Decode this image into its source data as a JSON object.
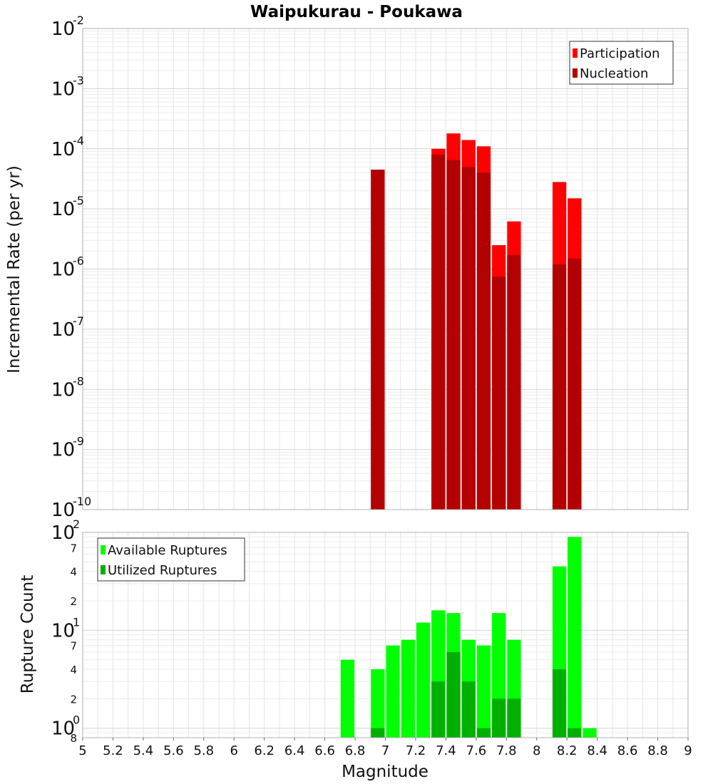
{
  "chart_data": [
    {
      "type": "bar",
      "title": "Waipukurau - Poukawa",
      "xlabel": "",
      "ylabel": "Incremental Rate (per yr)",
      "xlim": [
        5,
        9
      ],
      "ylim": [
        1e-10,
        0.01
      ],
      "yscale": "log",
      "grid": true,
      "legend_position": "top-right",
      "bar_width": 0.1,
      "x_ticks": [
        "5",
        "5.2",
        "5.4",
        "5.6",
        "5.8",
        "6",
        "6.2",
        "6.4",
        "6.6",
        "6.8",
        "7",
        "7.2",
        "7.4",
        "7.6",
        "7.8",
        "8",
        "8.2",
        "8.4",
        "8.6",
        "8.8",
        "9"
      ],
      "y_tick_bases": [
        "10",
        "10",
        "10",
        "10",
        "10",
        "10",
        "10",
        "10",
        "10"
      ],
      "y_tick_exponents": [
        "-10",
        "-9",
        "-8",
        "-7",
        "-6",
        "-5",
        "-4",
        "-3",
        "-2"
      ],
      "series": [
        {
          "name": "Participation",
          "color": "#ff0000",
          "x": [
            6.95,
            7.35,
            7.45,
            7.55,
            7.65,
            7.75,
            7.85,
            8.15,
            8.25
          ],
          "values": [
            4.5e-05,
            0.0001,
            0.00018,
            0.00014,
            0.00011,
            2.5e-06,
            6.2e-06,
            2.8e-05,
            1.5e-05
          ]
        },
        {
          "name": "Nucleation",
          "color": "#b30000",
          "x": [
            6.95,
            7.35,
            7.45,
            7.55,
            7.65,
            7.75,
            7.85,
            8.15,
            8.25
          ],
          "values": [
            4.5e-05,
            8e-05,
            6.5e-05,
            5e-05,
            4e-05,
            7.5e-07,
            1.7e-06,
            1.2e-06,
            1.5e-06
          ]
        }
      ]
    },
    {
      "type": "bar",
      "title": "",
      "xlabel": "Magnitude",
      "ylabel": "Rupture Count",
      "xlim": [
        5,
        9
      ],
      "ylim": [
        0.8,
        100
      ],
      "yscale": "log",
      "grid": true,
      "legend_position": "top-left",
      "bar_width": 0.1,
      "x_ticks": [
        "5",
        "5.2",
        "5.4",
        "5.6",
        "5.8",
        "6",
        "6.2",
        "6.4",
        "6.6",
        "6.8",
        "7",
        "7.2",
        "7.4",
        "7.6",
        "7.8",
        "8",
        "8.2",
        "8.4",
        "8.6",
        "8.8",
        "9"
      ],
      "y_tick_labels": [
        {
          "value": 0.8,
          "base": "8",
          "exp": ""
        },
        {
          "value": 1,
          "base": "10",
          "exp": "0"
        },
        {
          "value": 2,
          "base": "2",
          "exp": ""
        },
        {
          "value": 4,
          "base": "4",
          "exp": ""
        },
        {
          "value": 7,
          "base": "7",
          "exp": ""
        },
        {
          "value": 10,
          "base": "10",
          "exp": "1"
        },
        {
          "value": 20,
          "base": "2",
          "exp": ""
        },
        {
          "value": 40,
          "base": "4",
          "exp": ""
        },
        {
          "value": 70,
          "base": "7",
          "exp": ""
        },
        {
          "value": 100,
          "base": "10",
          "exp": "2"
        }
      ],
      "series": [
        {
          "name": "Available Ruptures",
          "color": "#00ff00",
          "x": [
            6.75,
            6.95,
            7.05,
            7.15,
            7.25,
            7.35,
            7.45,
            7.55,
            7.65,
            7.75,
            7.85,
            8.15,
            8.25,
            8.35
          ],
          "values": [
            5,
            4,
            7,
            8,
            12,
            16,
            15,
            8,
            7,
            15,
            8,
            45,
            90,
            1
          ]
        },
        {
          "name": "Utilized Ruptures",
          "color": "#00b000",
          "x": [
            6.95,
            7.35,
            7.45,
            7.55,
            7.65,
            7.75,
            7.85,
            8.15,
            8.25
          ],
          "values": [
            1,
            3,
            6,
            3,
            1,
            2,
            2,
            4,
            1
          ]
        }
      ]
    }
  ]
}
